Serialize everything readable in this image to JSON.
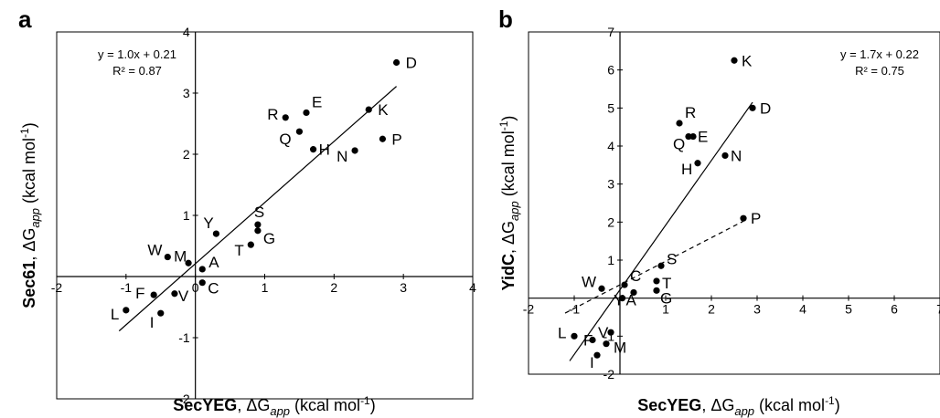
{
  "chart_data": [
    {
      "type": "scatter",
      "panel_label": "a",
      "xlabel": {
        "bold": "SecYEG",
        "rest": ", ΔG",
        "sub": "app",
        "unit": " (kcal mol",
        "sup": "-1",
        "close": ")"
      },
      "ylabel": {
        "bold": "Sec61",
        "rest": ", ΔG",
        "sub": "app",
        "unit": " (kcal mol",
        "sup": "-1",
        "close": ")"
      },
      "xlim": [
        -2,
        4
      ],
      "ylim": [
        -2,
        4
      ],
      "xticks": [
        "-2",
        "-1",
        "0",
        "1",
        "2",
        "3",
        "4"
      ],
      "yticks": [
        "-2",
        "-1",
        "0",
        "1",
        "2",
        "3",
        "4"
      ],
      "grid": false,
      "fits": [
        {
          "equation": "y = 1.0x + 0.21",
          "r2": "R² = 0.87",
          "slope": 1.0,
          "intercept": 0.21,
          "x_range": [
            -1.1,
            2.9
          ],
          "style": "solid"
        }
      ],
      "points": [
        {
          "label": "D",
          "x": 2.9,
          "y": 3.5
        },
        {
          "label": "K",
          "x": 2.5,
          "y": 2.73
        },
        {
          "label": "P",
          "x": 2.7,
          "y": 2.25
        },
        {
          "label": "N",
          "x": 2.3,
          "y": 2.06
        },
        {
          "label": "E",
          "x": 1.6,
          "y": 2.68
        },
        {
          "label": "R",
          "x": 1.3,
          "y": 2.6
        },
        {
          "label": "Q",
          "x": 1.5,
          "y": 2.37
        },
        {
          "label": "H",
          "x": 1.7,
          "y": 2.08
        },
        {
          "label": "S",
          "x": 0.9,
          "y": 0.85
        },
        {
          "label": "Y",
          "x": 0.3,
          "y": 0.7
        },
        {
          "label": "G",
          "x": 0.9,
          "y": 0.75
        },
        {
          "label": "T",
          "x": 0.8,
          "y": 0.52
        },
        {
          "label": "W",
          "x": -0.4,
          "y": 0.32
        },
        {
          "label": "M",
          "x": -0.1,
          "y": 0.22
        },
        {
          "label": "A",
          "x": 0.1,
          "y": 0.12
        },
        {
          "label": "F",
          "x": -0.6,
          "y": -0.3
        },
        {
          "label": "V",
          "x": -0.3,
          "y": -0.28
        },
        {
          "label": "C",
          "x": 0.1,
          "y": -0.1
        },
        {
          "label": "L",
          "x": -1.0,
          "y": -0.55
        },
        {
          "label": "I",
          "x": -0.5,
          "y": -0.6
        }
      ]
    },
    {
      "type": "scatter",
      "panel_label": "b",
      "xlabel": {
        "bold": "SecYEG",
        "rest": ", ΔG",
        "sub": "app",
        "unit": " (kcal mol",
        "sup": "-1",
        "close": ")"
      },
      "ylabel": {
        "bold": "YidC",
        "rest": ", ΔG",
        "sub": "app",
        "unit": " (kcal mol",
        "sup": "-1",
        "close": ")"
      },
      "xlim": [
        -2,
        7
      ],
      "ylim": [
        -2,
        7
      ],
      "xticks": [
        "-2",
        "-1",
        "0",
        "1",
        "2",
        "3",
        "4",
        "5",
        "6",
        "7"
      ],
      "yticks": [
        "-2",
        "-1",
        "0",
        "1",
        "2",
        "3",
        "4",
        "5",
        "6",
        "7"
      ],
      "grid": false,
      "fits": [
        {
          "equation": "y = 1.7x + 0.22",
          "r2": "R² = 0.75",
          "slope": 1.7,
          "intercept": 0.22,
          "x_range": [
            -1.1,
            2.9
          ],
          "style": "solid"
        },
        {
          "equation": "",
          "r2": "",
          "slope": 0.62,
          "intercept": 0.35,
          "x_range": [
            -1.2,
            2.7
          ],
          "style": "dashed"
        }
      ],
      "points": [
        {
          "label": "K",
          "x": 2.5,
          "y": 6.25
        },
        {
          "label": "D",
          "x": 2.9,
          "y": 5.0
        },
        {
          "label": "R",
          "x": 1.3,
          "y": 4.6
        },
        {
          "label": "E",
          "x": 1.5,
          "y": 4.25
        },
        {
          "label": "Q",
          "x": 1.6,
          "y": 4.25
        },
        {
          "label": "N",
          "x": 2.3,
          "y": 3.75
        },
        {
          "label": "H",
          "x": 1.7,
          "y": 3.55
        },
        {
          "label": "P",
          "x": 2.7,
          "y": 2.1
        },
        {
          "label": "S",
          "x": 0.9,
          "y": 0.85
        },
        {
          "label": "T",
          "x": 0.8,
          "y": 0.45
        },
        {
          "label": "C",
          "x": 0.1,
          "y": 0.35
        },
        {
          "label": "G",
          "x": 0.8,
          "y": 0.2
        },
        {
          "label": "Y",
          "x": 0.3,
          "y": 0.15
        },
        {
          "label": "W",
          "x": -0.4,
          "y": 0.25
        },
        {
          "label": "A",
          "x": 0.05,
          "y": 0.0
        },
        {
          "label": "V",
          "x": -0.2,
          "y": -0.9
        },
        {
          "label": "F",
          "x": -0.6,
          "y": -1.1
        },
        {
          "label": "L",
          "x": -1.0,
          "y": -1.0
        },
        {
          "label": "M",
          "x": -0.3,
          "y": -1.2
        },
        {
          "label": "I",
          "x": -0.5,
          "y": -1.5
        }
      ]
    }
  ]
}
